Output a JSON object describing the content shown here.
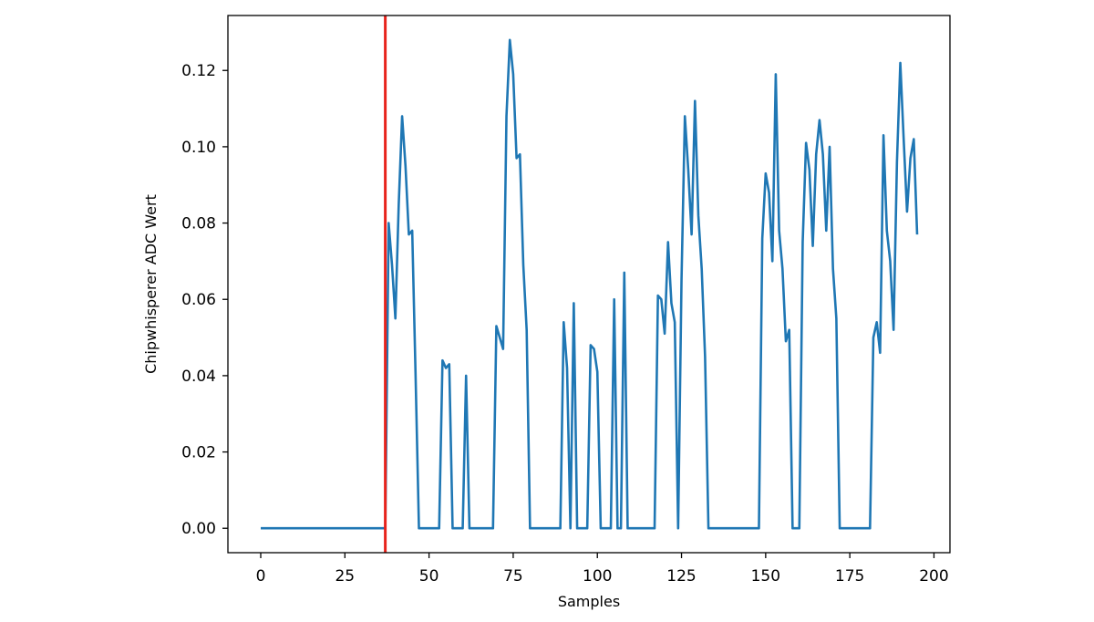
{
  "chart_data": {
    "type": "line",
    "title": "",
    "xlabel": "Samples",
    "ylabel": "Chipwhisperer ADC Wert",
    "xlim": [
      -9.75,
      204.75
    ],
    "ylim": [
      -0.0064,
      0.1344
    ],
    "xticks": [
      0,
      25,
      50,
      75,
      100,
      125,
      150,
      175,
      200
    ],
    "xtick_labels": [
      "0",
      "25",
      "50",
      "75",
      "100",
      "125",
      "150",
      "175",
      "200"
    ],
    "yticks": [
      0.0,
      0.02,
      0.04,
      0.06,
      0.08,
      0.1,
      0.12
    ],
    "ytick_labels": [
      "0.00",
      "0.02",
      "0.04",
      "0.06",
      "0.08",
      "0.10",
      "0.12"
    ],
    "grid": false,
    "legend": "none",
    "colors": {
      "series": "#1f77b4",
      "marker_line": "#e8231c"
    },
    "vertical_marker": {
      "x": 37
    },
    "series": [
      {
        "x": [
          0,
          37,
          38,
          39,
          40,
          41,
          42,
          43,
          44,
          45,
          46,
          47,
          53,
          54,
          55,
          56,
          57,
          59,
          60,
          61,
          62,
          69,
          70,
          72,
          73,
          74,
          75,
          76,
          77,
          78,
          79,
          80,
          81,
          89,
          90,
          91,
          92,
          93,
          94,
          97,
          98,
          99,
          100,
          101,
          104,
          105,
          106,
          107,
          108,
          109,
          110,
          117,
          118,
          119,
          120,
          121,
          122,
          123,
          124,
          125,
          126,
          127,
          128,
          129,
          130,
          131,
          132,
          133,
          134,
          148,
          149,
          150,
          151,
          152,
          153,
          154,
          155,
          156,
          157,
          158,
          159,
          160,
          161,
          162,
          163,
          164,
          165,
          166,
          167,
          168,
          169,
          170,
          171,
          172,
          181,
          182,
          183,
          184,
          185,
          186,
          187,
          188,
          189,
          190,
          191,
          192,
          193,
          194,
          195
        ],
        "y": [
          0,
          0,
          0.08,
          0.069,
          0.055,
          0.085,
          0.108,
          0.095,
          0.077,
          0.078,
          0.04,
          0,
          0,
          0.044,
          0.042,
          0.043,
          0,
          0,
          0,
          0.04,
          0,
          0,
          0.053,
          0.047,
          0.108,
          0.128,
          0.119,
          0.097,
          0.098,
          0.069,
          0.052,
          0,
          0,
          0,
          0.054,
          0.042,
          0,
          0.059,
          0,
          0,
          0.048,
          0.047,
          0.041,
          0,
          0,
          0.06,
          0,
          0,
          0.067,
          0,
          0,
          0,
          0.061,
          0.06,
          0.051,
          0.075,
          0.059,
          0.054,
          0,
          0.065,
          0.108,
          0.094,
          0.077,
          0.112,
          0.082,
          0.068,
          0.045,
          0,
          0,
          0,
          0.076,
          0.093,
          0.088,
          0.07,
          0.119,
          0.078,
          0.068,
          0.049,
          0.052,
          0,
          0,
          0,
          0.075,
          0.101,
          0.094,
          0.074,
          0.098,
          0.107,
          0.098,
          0.078,
          0.1,
          0.068,
          0.055,
          0,
          0,
          0.05,
          0.054,
          0.046,
          0.103,
          0.078,
          0.07,
          0.052,
          0.096,
          0.122,
          0.102,
          0.083,
          0.097,
          0.102,
          0.077
        ]
      }
    ]
  }
}
